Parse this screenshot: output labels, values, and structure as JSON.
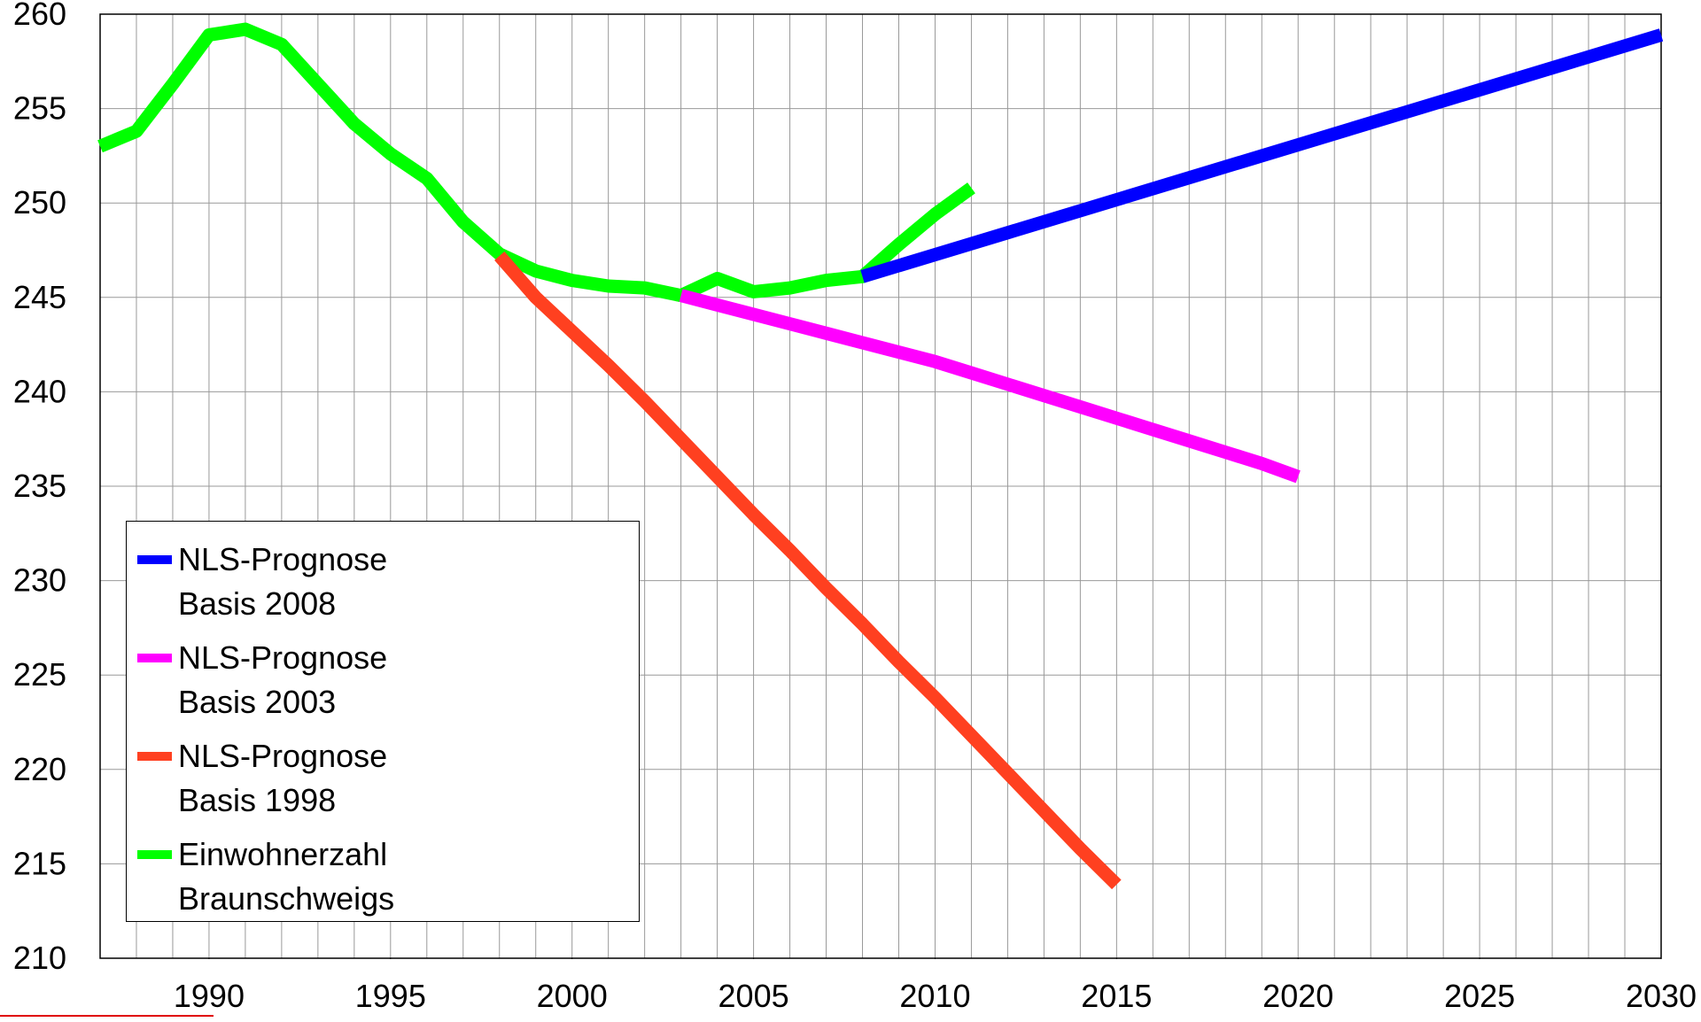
{
  "chart_data": {
    "type": "line",
    "xlim": [
      1987,
      2030
    ],
    "xticks": [
      1990,
      1995,
      2000,
      2005,
      2010,
      2015,
      2020,
      2025,
      2030
    ],
    "ylim": [
      210,
      260
    ],
    "yticks": [
      210,
      215,
      220,
      225,
      230,
      235,
      240,
      245,
      250,
      255,
      260
    ],
    "grid": true,
    "series": [
      {
        "name": "NLS-Prognose Basis 2008",
        "color": "#0000ff",
        "x": [
          2008,
          2030
        ],
        "values": [
          246.1,
          258.9
        ]
      },
      {
        "name": "NLS-Prognose Basis 2003",
        "color": "#ff00ff",
        "x": [
          2003,
          2004,
          2005,
          2006,
          2007,
          2008,
          2009,
          2010,
          2011,
          2012,
          2013,
          2014,
          2015,
          2016,
          2017,
          2018,
          2019,
          2020
        ],
        "values": [
          245.1,
          244.6,
          244.1,
          243.6,
          243.1,
          242.6,
          242.1,
          241.6,
          241.0,
          240.4,
          239.8,
          239.2,
          238.6,
          238.0,
          237.4,
          236.8,
          236.2,
          235.5
        ]
      },
      {
        "name": "NLS-Prognose Basis 1998",
        "color": "#ff4020",
        "x": [
          1998,
          1999,
          2000,
          2001,
          2002,
          2003,
          2004,
          2005,
          2006,
          2007,
          2008,
          2009,
          2010,
          2011,
          2012,
          2013,
          2014,
          2015
        ],
        "values": [
          247.2,
          245.0,
          243.2,
          241.4,
          239.5,
          237.5,
          235.5,
          233.5,
          231.6,
          229.6,
          227.7,
          225.7,
          223.8,
          221.8,
          219.8,
          217.8,
          215.8,
          213.9
        ]
      },
      {
        "name": "Einwohnerzahl Braunschweigs",
        "color": "#00ff00",
        "x": [
          1987,
          1988,
          1989,
          1990,
          1991,
          1992,
          1993,
          1994,
          1995,
          1996,
          1997,
          1998,
          1999,
          2000,
          2001,
          2002,
          2003,
          2004,
          2005,
          2006,
          2007,
          2008,
          2009,
          2010,
          2011
        ],
        "values": [
          253.0,
          253.8,
          256.3,
          258.9,
          259.2,
          258.4,
          256.3,
          254.2,
          252.6,
          251.3,
          249.0,
          247.3,
          246.4,
          245.9,
          245.6,
          245.5,
          245.1,
          246.0,
          245.3,
          245.5,
          245.9,
          246.1,
          247.8,
          249.4,
          250.8
        ]
      }
    ]
  }
}
